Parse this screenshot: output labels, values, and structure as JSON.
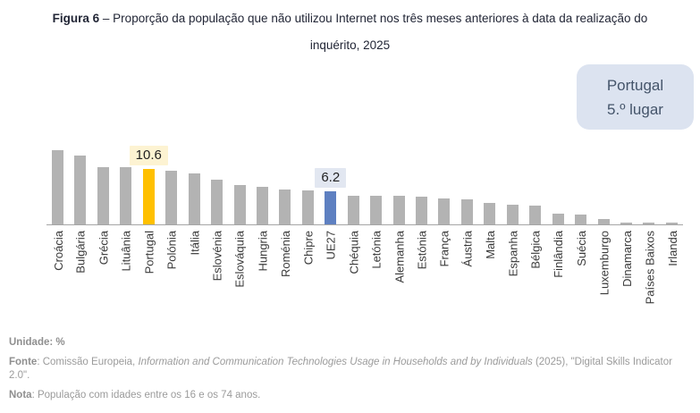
{
  "title": {
    "prefix": "Figura 6",
    "line1_rest": " – Proporção da população que não utilizou Internet nos três meses anteriores à data da realização do",
    "line2": "inquérito, 2025"
  },
  "badge": {
    "line1": "Portugal",
    "line2": "5.º lugar"
  },
  "chart_data": {
    "type": "bar",
    "title": "Proporção da população que não utilizou Internet nos três meses anteriores à data da realização do inquérito, 2025",
    "unit": "%",
    "ylim": [
      0,
      15
    ],
    "grid": false,
    "legend_position": "none",
    "categories": [
      "Croácia",
      "Bulgária",
      "Grécia",
      "Lituânia",
      "Portugal",
      "Polónia",
      "Itália",
      "Eslovénia",
      "Eslováquia",
      "Hungria",
      "Roménia",
      "Chipre",
      "UE27",
      "Chéquia",
      "Letónia",
      "Alemanha",
      "Estónia",
      "França",
      "Áustria",
      "Malta",
      "Espanha",
      "Bélgica",
      "Finlândia",
      "Suécia",
      "Luxemburgo",
      "Dinamarca",
      "Países Baixos",
      "Irlanda"
    ],
    "values": [
      14.0,
      13.1,
      10.9,
      10.8,
      10.6,
      10.2,
      9.6,
      8.4,
      7.5,
      7.1,
      6.7,
      6.4,
      6.2,
      5.5,
      5.4,
      5.4,
      5.2,
      5.0,
      4.7,
      4.1,
      3.7,
      3.6,
      2.0,
      1.8,
      1.0,
      0.4,
      0.4,
      0.3
    ],
    "default_bar_color": "#B3B3B3",
    "axis_color": "#A6A6A6",
    "highlights": [
      {
        "category": "Portugal",
        "value_label": "10.6",
        "bar_color": "#FFC000",
        "label_bg": "#FDF3D2"
      },
      {
        "category": "UE27",
        "value_label": "6.2",
        "bar_color": "#5E80C1",
        "label_bg": "#E2E7F1"
      }
    ]
  },
  "footer": {
    "unit_line": "Unidade: %",
    "source_label": "Fonte",
    "source_prefix": ": Comissão Europeia, ",
    "source_italic": "Information and Communication Technologies Usage in Households and by Individuals",
    "source_suffix": " (2025), \"Digital Skills Indicator 2.0\".",
    "note_label": "Nota",
    "note_text": ": População com idades entre os 16 e os 74 anos."
  }
}
